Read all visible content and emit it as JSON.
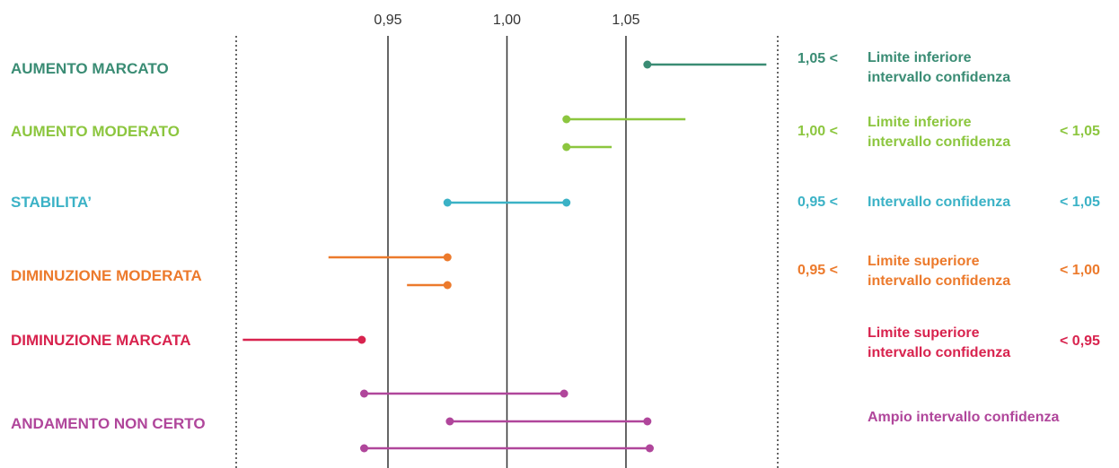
{
  "colors": {
    "aumento_marcato": "#3a8c74",
    "aumento_moderato": "#8cc63f",
    "stabilita": "#3bb2c6",
    "diminuzione_moderata": "#ec7a2c",
    "diminuzione_marcata": "#d8234e",
    "andamento_non_certo": "#b0469b"
  },
  "axis": {
    "ticks": [
      "0,95",
      "1,00",
      "1,05"
    ],
    "tick_values": [
      0.95,
      1.0,
      1.05
    ],
    "xlim": [
      0.884,
      1.112
    ]
  },
  "categories": [
    {
      "id": "aumento_marcato",
      "label": "AUMENTO MARCATO",
      "lo": "1,05 <",
      "desc": "Limite inferiore\nintervallo confidenza",
      "hi": ""
    },
    {
      "id": "aumento_moderato",
      "label": "AUMENTO MODERATO",
      "lo": "1,00 <",
      "desc": "Limite inferiore\nintervallo confidenza",
      "hi": "< 1,05"
    },
    {
      "id": "stabilita",
      "label": "STABILITA’",
      "lo": "0,95 <",
      "desc": "Intervallo confidenza",
      "hi": "< 1,05"
    },
    {
      "id": "diminuzione_moderata",
      "label": "DIMINUZIONE MODERATA",
      "lo": "0,95 <",
      "desc": "Limite superiore\nintervallo confidenza",
      "hi": "< 1,00"
    },
    {
      "id": "diminuzione_marcata",
      "label": "DIMINUZIONE MARCATA",
      "lo": "",
      "desc": "Limite superiore\nintervallo confidenza",
      "hi": "< 0,95"
    },
    {
      "id": "andamento_non_certo",
      "label": "ANDAMENTO NON CERTO",
      "lo": "",
      "desc": "Ampio intervallo confidenza",
      "hi": ""
    }
  ],
  "intervals": [
    {
      "cat": "aumento_marcato",
      "lo": 1.059,
      "hi": 1.109,
      "dot": "lo"
    },
    {
      "cat": "aumento_moderato",
      "lo": 1.025,
      "hi": 1.075,
      "dot": "lo"
    },
    {
      "cat": "aumento_moderato",
      "lo": 1.025,
      "hi": 1.044,
      "dot": "lo"
    },
    {
      "cat": "stabilita",
      "lo": 0.975,
      "hi": 1.025,
      "dot": "both"
    },
    {
      "cat": "diminuzione_moderata",
      "lo": 0.925,
      "hi": 0.975,
      "dot": "hi"
    },
    {
      "cat": "diminuzione_moderata",
      "lo": 0.958,
      "hi": 0.975,
      "dot": "hi"
    },
    {
      "cat": "diminuzione_marcata",
      "lo": 0.889,
      "hi": 0.939,
      "dot": "hi"
    },
    {
      "cat": "andamento_non_certo",
      "lo": 0.94,
      "hi": 1.024,
      "dot": "both"
    },
    {
      "cat": "andamento_non_certo",
      "lo": 0.976,
      "hi": 1.059,
      "dot": "both"
    },
    {
      "cat": "andamento_non_certo",
      "lo": 0.94,
      "hi": 1.06,
      "dot": "both"
    }
  ]
}
